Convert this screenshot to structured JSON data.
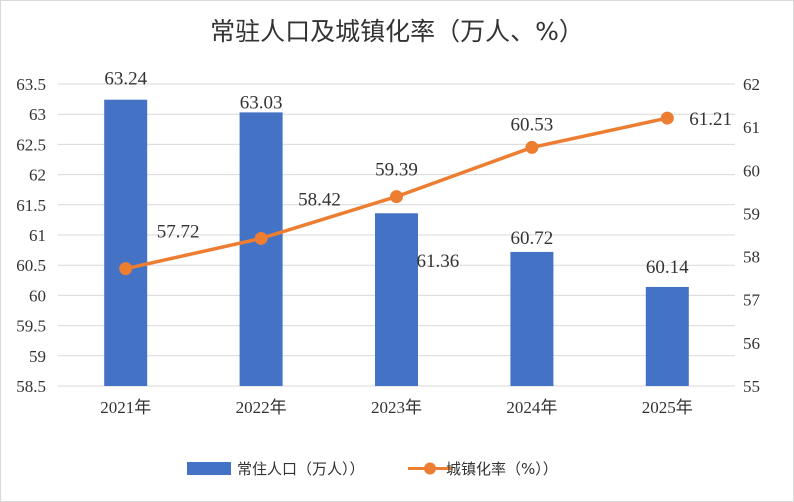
{
  "chart_data": {
    "type": "bar+line",
    "title": "常驻人口及城镇化率（万人、%）",
    "categories": [
      "2021年",
      "2022年",
      "2023年",
      "2024年",
      "2025年"
    ],
    "series": [
      {
        "name": "常住人口（万人））",
        "type": "bar",
        "axis": "left",
        "color": "#4472c4",
        "values": [
          63.24,
          63.03,
          61.36,
          60.72,
          60.14
        ]
      },
      {
        "name": "城镇化率（%））",
        "type": "line",
        "axis": "right",
        "color": "#ed7d31",
        "values": [
          57.72,
          58.42,
          59.39,
          60.53,
          61.21
        ]
      }
    ],
    "y_left": {
      "min": 58.5,
      "max": 63.5,
      "step": 0.5,
      "ticks": [
        "58.5",
        "59",
        "59.5",
        "60",
        "60.5",
        "61",
        "61.5",
        "62",
        "62.5",
        "63",
        "63.5"
      ]
    },
    "y_right": {
      "min": 55,
      "max": 62,
      "step": 1,
      "ticks": [
        "55",
        "56",
        "57",
        "58",
        "59",
        "60",
        "61",
        "62"
      ]
    },
    "grid": true,
    "legend": "bottom"
  }
}
